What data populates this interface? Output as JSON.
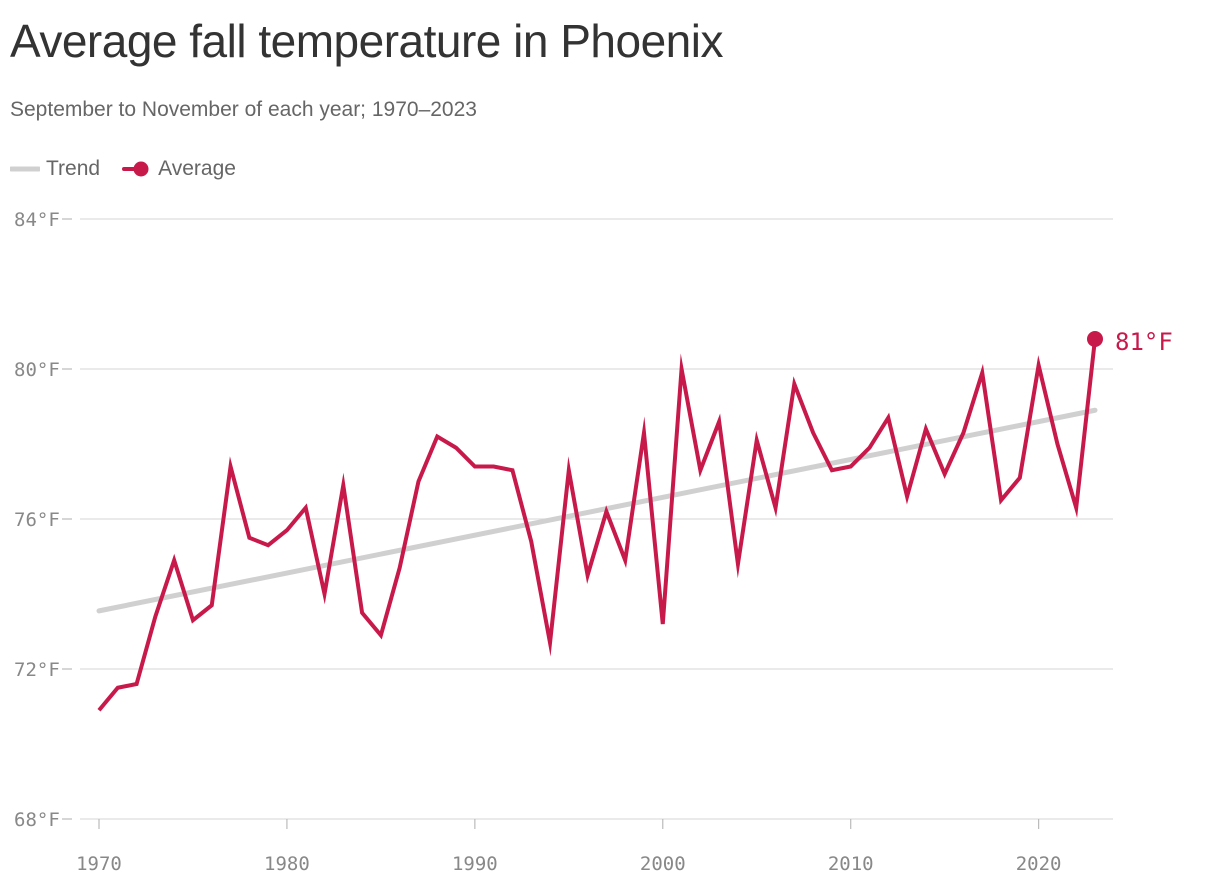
{
  "colors": {
    "average": "#c8194b",
    "trend": "#d0d0d0",
    "grid": "#dddddd",
    "axis_text": "#888888"
  },
  "chart_data": {
    "type": "line",
    "title": "Average fall temperature in Phoenix",
    "subtitle": "September to November of each year; 1970–2023",
    "legend": [
      "Trend",
      "Average"
    ],
    "legend_placement": "top-left",
    "ylim": [
      68,
      84
    ],
    "xlim": [
      1970,
      2023
    ],
    "y_ticks": [
      {
        "value": 68,
        "label": "68°F"
      },
      {
        "value": 72,
        "label": "72°F"
      },
      {
        "value": 76,
        "label": "76°F"
      },
      {
        "value": 80,
        "label": "80°F"
      },
      {
        "value": 84,
        "label": "84°F"
      }
    ],
    "x_ticks": [
      {
        "value": 1970,
        "label": "1970"
      },
      {
        "value": 1980,
        "label": "1980"
      },
      {
        "value": 1990,
        "label": "1990"
      },
      {
        "value": 2000,
        "label": "2000"
      },
      {
        "value": 2010,
        "label": "2010"
      },
      {
        "value": 2020,
        "label": "2020"
      }
    ],
    "grid": true,
    "series": [
      {
        "name": "Average",
        "x": [
          1970,
          1971,
          1972,
          1973,
          1974,
          1975,
          1976,
          1977,
          1978,
          1979,
          1980,
          1981,
          1982,
          1983,
          1984,
          1985,
          1986,
          1987,
          1988,
          1989,
          1990,
          1991,
          1992,
          1993,
          1994,
          1995,
          1996,
          1997,
          1998,
          1999,
          2000,
          2001,
          2002,
          2003,
          2004,
          2005,
          2006,
          2007,
          2008,
          2009,
          2010,
          2011,
          2012,
          2013,
          2014,
          2015,
          2016,
          2017,
          2018,
          2019,
          2020,
          2021,
          2022,
          2023
        ],
        "values": [
          70.9,
          71.5,
          71.6,
          73.4,
          74.9,
          73.3,
          73.7,
          77.4,
          75.5,
          75.3,
          75.7,
          76.3,
          74.0,
          76.9,
          73.5,
          72.9,
          74.7,
          77.0,
          78.2,
          77.9,
          77.4,
          77.4,
          77.3,
          75.4,
          72.7,
          77.3,
          74.5,
          76.2,
          74.9,
          78.3,
          73.2,
          80.0,
          77.3,
          78.6,
          74.8,
          78.1,
          76.3,
          79.6,
          78.3,
          77.3,
          77.4,
          77.9,
          78.7,
          76.6,
          78.4,
          77.2,
          78.3,
          79.9,
          76.5,
          77.1,
          80.1,
          78.0,
          76.3,
          80.8
        ]
      },
      {
        "name": "Trend",
        "x": [
          1970,
          2023
        ],
        "values": [
          73.55,
          78.9
        ]
      }
    ],
    "end_label": "81°F"
  }
}
